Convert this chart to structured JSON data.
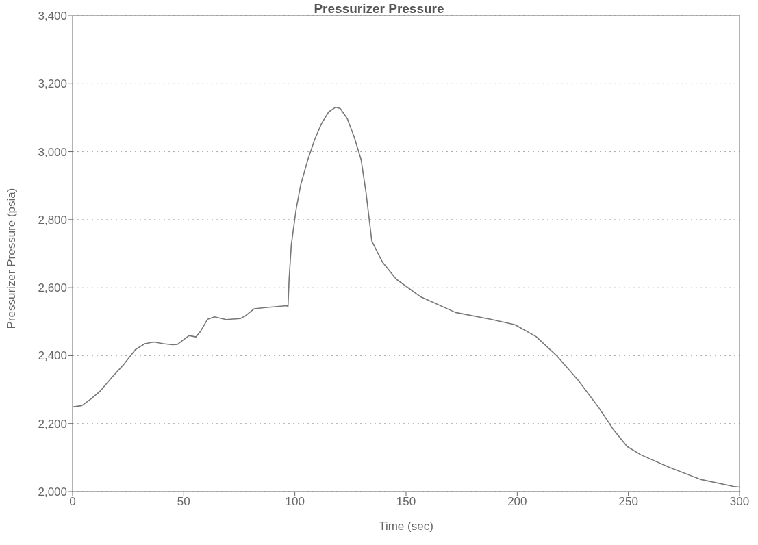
{
  "chart_data": {
    "type": "line",
    "title": "Pressurizer Pressure",
    "xlabel": "Time (sec)",
    "ylabel": "Pressurizer Pressure (psia)",
    "x": [
      0,
      4.2,
      8.4,
      12.6,
      17.8,
      23,
      28.3,
      32.5,
      36.6,
      40.8,
      45,
      47.1,
      52.4,
      55.5,
      57.6,
      60.7,
      63.9,
      69.1,
      75.4,
      77.5,
      81.7,
      85.9,
      96.3,
      96.9,
      97.4,
      98.4,
      100.5,
      102.6,
      105.8,
      108.9,
      112,
      115.2,
      118.3,
      120.4,
      123.6,
      126.7,
      129.8,
      132,
      134.6,
      139.3,
      145.6,
      156.6,
      172.3,
      188,
      199,
      208.5,
      217.9,
      227.4,
      236.8,
      243.1,
      249.4,
      255.7,
      268.2,
      282.4,
      297.3,
      300
    ],
    "series": [
      {
        "color": "#777777",
        "values": [
          2249,
          2253,
          2273,
          2297,
          2337,
          2374,
          2418,
          2435,
          2440,
          2435,
          2432,
          2433,
          2459,
          2455,
          2472,
          2507,
          2514,
          2506,
          2509,
          2516,
          2538,
          2541,
          2547,
          2545,
          2626,
          2727,
          2828,
          2902,
          2976,
          3036,
          3083,
          3117,
          3131,
          3127,
          3097,
          3043,
          2976,
          2880,
          2737,
          2676,
          2625,
          2573,
          2527,
          2507,
          2491,
          2456,
          2399,
          2328,
          2246,
          2184,
          2133,
          2108,
          2072,
          2036,
          2015,
          2013
        ]
      }
    ],
    "xlim": [
      0,
      300
    ],
    "xticks": [
      0,
      50,
      100,
      150,
      200,
      250,
      300
    ],
    "ylim": [
      2000,
      3400
    ],
    "yticks": [
      {
        "value": 2000,
        "label": "2,000"
      },
      {
        "value": 2200,
        "label": "2,200"
      },
      {
        "value": 2400,
        "label": "2,400"
      },
      {
        "value": 2600,
        "label": "2,600"
      },
      {
        "value": 2800,
        "label": "2,800"
      },
      {
        "value": 3000,
        "label": "3,000"
      },
      {
        "value": 3200,
        "label": "3,200"
      },
      {
        "value": 3400,
        "label": "3,400"
      }
    ],
    "grid": "y",
    "legend": false,
    "marker": "none",
    "line_style": "solid"
  }
}
